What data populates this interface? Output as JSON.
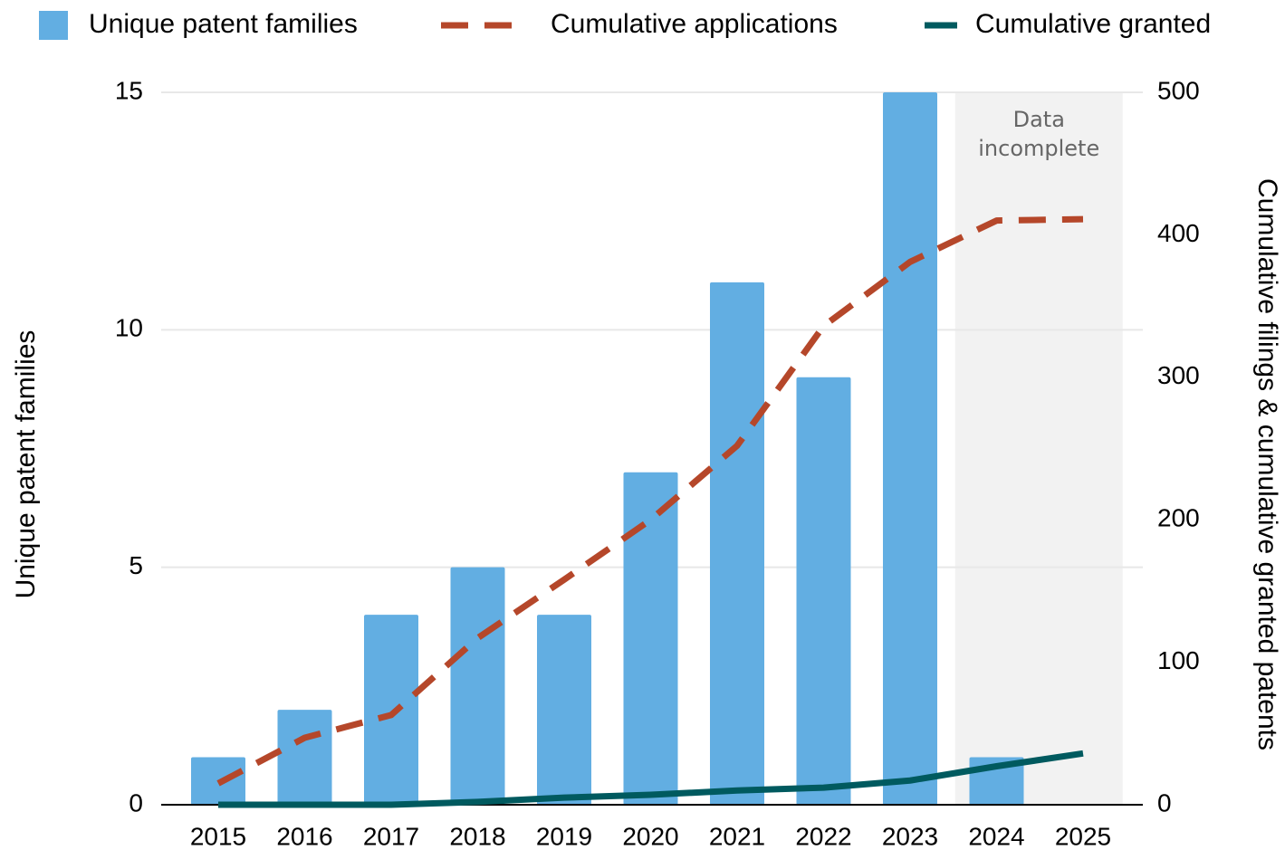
{
  "chart_data": {
    "type": "bar",
    "categories": [
      "2015",
      "2016",
      "2017",
      "2018",
      "2019",
      "2020",
      "2021",
      "2022",
      "2023",
      "2024",
      "2025"
    ],
    "series": [
      {
        "name": "Unique patent families",
        "type": "bar",
        "axis": "y",
        "color": "#62aee2",
        "values": [
          1,
          2,
          4,
          5,
          4,
          7,
          11,
          9,
          15,
          1,
          0
        ]
      },
      {
        "name": "Cumulative applications",
        "type": "line",
        "dashed": true,
        "axis": "y2",
        "color": "#b5472a",
        "values": [
          15,
          47,
          63,
          117,
          158,
          200,
          252,
          336,
          381,
          410,
          411
        ]
      },
      {
        "name": "Cumulative granted",
        "type": "line",
        "dashed": false,
        "axis": "y2",
        "color": "#005a5f",
        "values": [
          0,
          0,
          0,
          2,
          5,
          7,
          10,
          12,
          17,
          27,
          36
        ]
      }
    ],
    "ylabel": "Unique patent families",
    "y2label": "Cumulative filings & cumulative granted patents",
    "ylim": [
      0,
      15
    ],
    "yticks": [
      0,
      5,
      10,
      15
    ],
    "y2lim": [
      0,
      500
    ],
    "y2ticks": [
      0,
      100,
      200,
      300,
      400,
      500
    ],
    "grid": true,
    "legend": "top",
    "shaded_region": {
      "categories": [
        "2024",
        "2025"
      ],
      "color": "#f2f2f2",
      "annotation": [
        "Data",
        "incomplete"
      ]
    }
  }
}
